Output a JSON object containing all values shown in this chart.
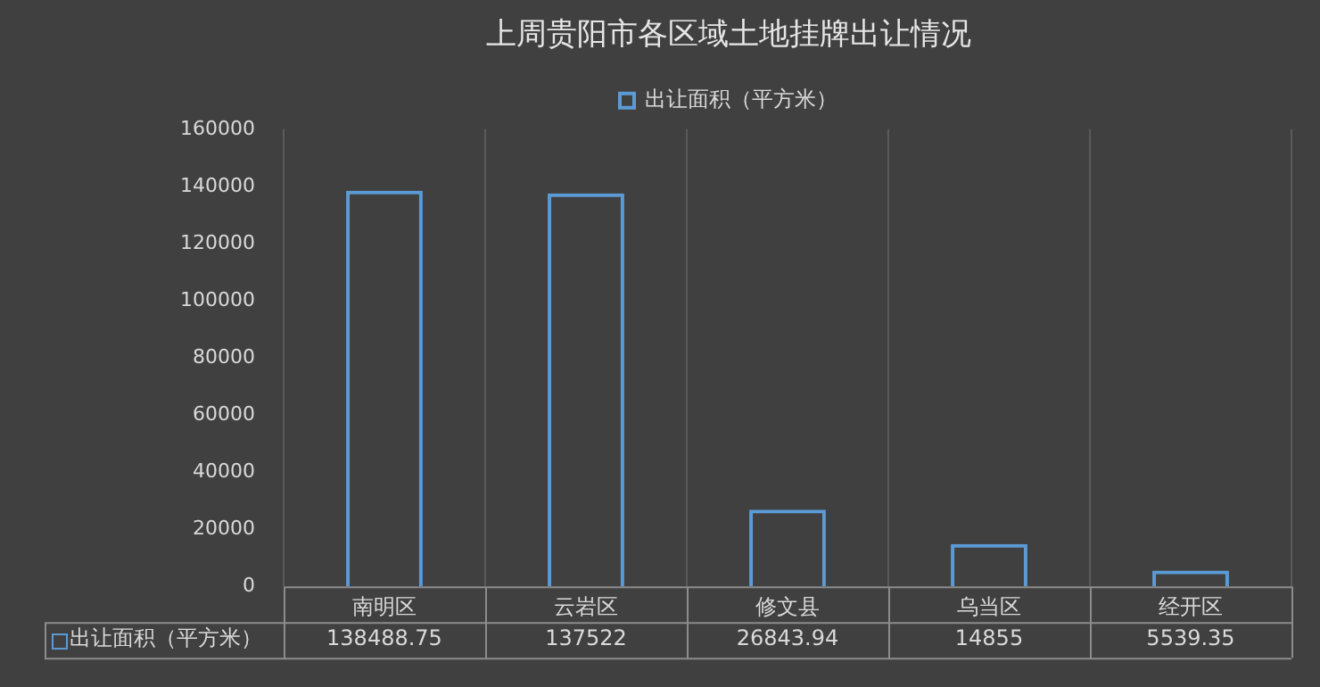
{
  "chart_data": {
    "type": "bar",
    "title": "上周贵阳市各区域土地挂牌出让情况",
    "categories": [
      "南明区",
      "云岩区",
      "修文县",
      "乌当区",
      "经开区"
    ],
    "series": [
      {
        "name": "出让面积（平方米）",
        "color": "#5b9bd5",
        "values": [
          138488.75,
          137522,
          26843.94,
          14855,
          5539.35
        ]
      }
    ],
    "ylim": [
      0,
      160000
    ],
    "yticks": [
      0,
      20000,
      40000,
      60000,
      80000,
      100000,
      120000,
      140000,
      160000
    ],
    "grid": "x",
    "legend": "top",
    "data_labels": true
  }
}
